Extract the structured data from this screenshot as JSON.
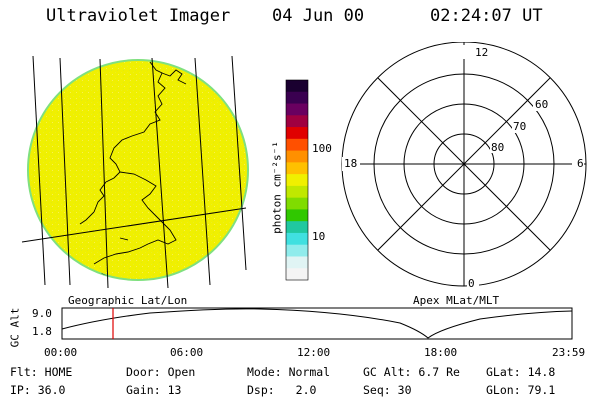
{
  "header": {
    "title": "Ultraviolet Imager",
    "date": "04 Jun 00",
    "time": "02:24:07 UT"
  },
  "globe": {
    "caption": "Geographic Lat/Lon",
    "fill_color": "#f0f000",
    "limb_color": "#7fe07f"
  },
  "colorbar": {
    "unit_label": "photon cm⁻²s⁻¹",
    "tick_labels": [
      "100",
      "10"
    ],
    "colors": [
      "#1a0030",
      "#3a0050",
      "#6a0060",
      "#a00040",
      "#e00000",
      "#ff5000",
      "#ff9000",
      "#ffc000",
      "#f0f000",
      "#c0e800",
      "#80dc00",
      "#30c800",
      "#20c8a0",
      "#40e0e0",
      "#90ecec",
      "#e0f4f4",
      "#f4f4f4"
    ]
  },
  "polar": {
    "caption": "Apex MLat/MLT",
    "mlt_labels": {
      "top": "12",
      "left": "18",
      "right": "6",
      "bottom": "0"
    },
    "lat_labels": [
      "60",
      "70",
      "80"
    ]
  },
  "altitude_plot": {
    "ylabel": "GC Alt",
    "yticks": [
      "9.0",
      "1.8"
    ],
    "xticks": [
      "00:00",
      "06:00",
      "12:00",
      "18:00",
      "23:59"
    ],
    "marker_time_hours": 2.4,
    "marker_color": "#e00000"
  },
  "info": {
    "flt_label": "Flt:",
    "flt_value": "HOME",
    "door_label": "Door:",
    "door_value": "Open",
    "mode_label": "Mode:",
    "mode_value": "Normal",
    "gcalt_label": "GC Alt:",
    "gcalt_value": "6.7 Re",
    "glat_label": "GLat:",
    "glat_value": "14.8",
    "ip_label": "IP:",
    "ip_value": "36.0",
    "gain_label": "Gain:",
    "gain_value": "13",
    "dsp_label": "Dsp:",
    "dsp_value": "2.0",
    "seq_label": "Seq:",
    "seq_value": "30",
    "glon_label": "GLon:",
    "glon_value": "79.1"
  }
}
